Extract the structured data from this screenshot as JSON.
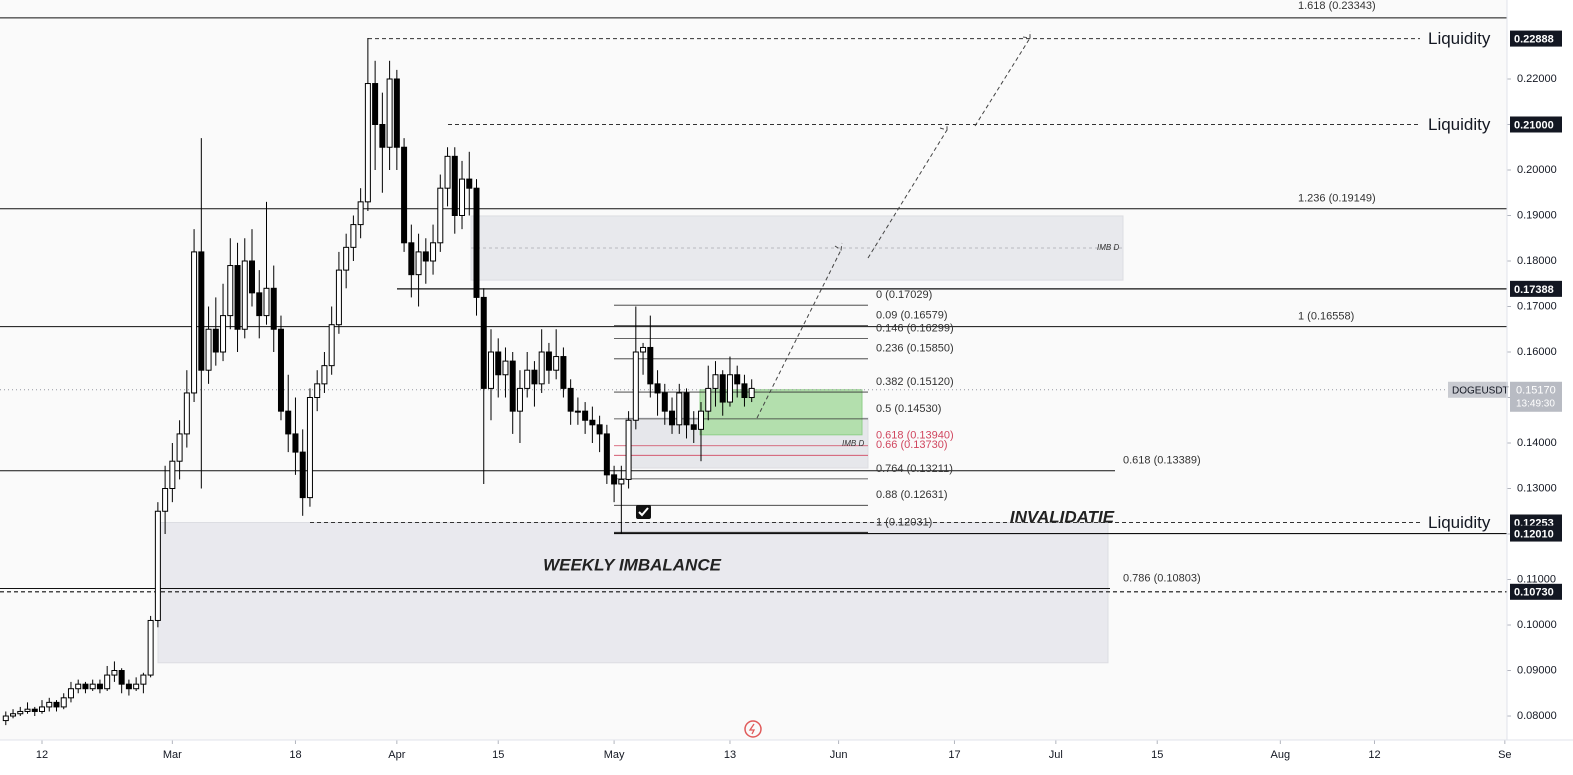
{
  "chart_data": {
    "type": "candlestick",
    "symbol": "DOGEUSDT",
    "last_price": {
      "value": 0.1517,
      "label": "0.15170"
    },
    "countdown": "13:49:30",
    "xlim": [
      -5.8,
      202.3
    ],
    "xticks": [
      {
        "value": 0,
        "label": "12"
      },
      {
        "value": 18,
        "label": "Mar"
      },
      {
        "value": 35,
        "label": "18"
      },
      {
        "value": 49,
        "label": "Apr"
      },
      {
        "value": 63,
        "label": "15"
      },
      {
        "value": 79,
        "label": "May"
      },
      {
        "value": 95,
        "label": "13"
      },
      {
        "value": 110,
        "label": "Jun"
      },
      {
        "value": 126,
        "label": "17"
      },
      {
        "value": 140,
        "label": "Jul"
      },
      {
        "value": 154,
        "label": "15"
      },
      {
        "value": 171,
        "label": "Aug"
      },
      {
        "value": 184,
        "label": "12"
      },
      {
        "value": 202,
        "label": "Se"
      }
    ],
    "ylim": [
      0.07473,
      0.23736
    ],
    "yticks": [
      {
        "value": 0.08,
        "label": "0.08000"
      },
      {
        "value": 0.09,
        "label": "0.09000"
      },
      {
        "value": 0.1,
        "label": "0.10000"
      },
      {
        "value": 0.11,
        "label": "0.11000"
      },
      {
        "value": 0.12,
        "label": "0.12000"
      },
      {
        "value": 0.13,
        "label": "0.13000"
      },
      {
        "value": 0.14,
        "label": "0.14000"
      },
      {
        "value": 0.15,
        "label": "0.15000"
      },
      {
        "value": 0.16,
        "label": "0.16000"
      },
      {
        "value": 0.17,
        "label": "0.17000"
      },
      {
        "value": 0.18,
        "label": "0.18000"
      },
      {
        "value": 0.19,
        "label": "0.19000"
      },
      {
        "value": 0.2,
        "label": "0.20000"
      },
      {
        "value": 0.21,
        "label": "0.21000"
      },
      {
        "value": 0.22,
        "label": "0.22000"
      }
    ],
    "candles": {
      "up_color": "#ffffff",
      "down_color": "#000000",
      "border_color": "#000000",
      "x": [
        -5,
        -4,
        -3,
        -2,
        -1,
        0,
        1,
        2,
        3,
        4,
        5,
        6,
        7,
        8,
        9,
        10,
        11,
        12,
        13,
        14,
        15,
        16,
        17,
        18,
        19,
        20,
        21,
        22,
        23,
        24,
        25,
        26,
        27,
        28,
        29,
        30,
        31,
        32,
        33,
        34,
        35,
        36,
        37,
        38,
        39,
        40,
        41,
        42,
        43,
        44,
        45,
        46,
        47,
        48,
        49,
        50,
        51,
        52,
        53,
        54,
        55,
        56,
        57,
        58,
        59,
        60,
        61,
        62,
        63,
        64,
        65,
        66,
        67,
        68,
        69,
        70,
        71,
        72,
        73,
        74,
        75,
        76,
        77,
        78,
        79,
        80,
        81,
        82,
        83,
        84,
        85,
        86,
        87,
        88,
        89,
        90,
        91,
        92,
        93,
        94,
        95,
        96,
        97,
        98
      ],
      "ohlc": [
        [
          0.079,
          0.081,
          0.078,
          0.08
        ],
        [
          0.08,
          0.0815,
          0.0795,
          0.0805
        ],
        [
          0.0805,
          0.082,
          0.08,
          0.081
        ],
        [
          0.081,
          0.083,
          0.0805,
          0.0815
        ],
        [
          0.0815,
          0.082,
          0.08,
          0.081
        ],
        [
          0.081,
          0.0835,
          0.0805,
          0.082
        ],
        [
          0.082,
          0.084,
          0.081,
          0.083
        ],
        [
          0.083,
          0.0835,
          0.081,
          0.082
        ],
        [
          0.082,
          0.085,
          0.0815,
          0.084
        ],
        [
          0.084,
          0.0875,
          0.083,
          0.086
        ],
        [
          0.086,
          0.088,
          0.085,
          0.087
        ],
        [
          0.087,
          0.0875,
          0.085,
          0.086
        ],
        [
          0.086,
          0.088,
          0.0855,
          0.087
        ],
        [
          0.087,
          0.088,
          0.085,
          0.086
        ],
        [
          0.086,
          0.091,
          0.0855,
          0.089
        ],
        [
          0.089,
          0.092,
          0.0875,
          0.09
        ],
        [
          0.09,
          0.0905,
          0.085,
          0.087
        ],
        [
          0.087,
          0.088,
          0.0845,
          0.086
        ],
        [
          0.086,
          0.0885,
          0.0855,
          0.087
        ],
        [
          0.087,
          0.0895,
          0.085,
          0.089
        ],
        [
          0.089,
          0.102,
          0.0885,
          0.101
        ],
        [
          0.101,
          0.127,
          0.0995,
          0.125
        ],
        [
          0.125,
          0.135,
          0.12,
          0.13
        ],
        [
          0.13,
          0.14,
          0.127,
          0.136
        ],
        [
          0.136,
          0.145,
          0.132,
          0.142
        ],
        [
          0.142,
          0.156,
          0.139,
          0.151
        ],
        [
          0.151,
          0.187,
          0.149,
          0.182
        ],
        [
          0.182,
          0.207,
          0.13,
          0.156
        ],
        [
          0.156,
          0.17,
          0.153,
          0.165
        ],
        [
          0.165,
          0.172,
          0.157,
          0.16
        ],
        [
          0.16,
          0.175,
          0.158,
          0.168
        ],
        [
          0.168,
          0.185,
          0.165,
          0.179
        ],
        [
          0.179,
          0.184,
          0.16,
          0.165
        ],
        [
          0.165,
          0.185,
          0.163,
          0.18
        ],
        [
          0.18,
          0.187,
          0.17,
          0.173
        ],
        [
          0.173,
          0.178,
          0.163,
          0.168
        ],
        [
          0.168,
          0.193,
          0.166,
          0.174
        ],
        [
          0.174,
          0.179,
          0.16,
          0.165
        ],
        [
          0.165,
          0.168,
          0.145,
          0.147
        ],
        [
          0.147,
          0.155,
          0.138,
          0.142
        ],
        [
          0.142,
          0.15,
          0.133,
          0.138
        ],
        [
          0.138,
          0.143,
          0.124,
          0.128
        ],
        [
          0.128,
          0.152,
          0.126,
          0.15
        ],
        [
          0.15,
          0.156,
          0.147,
          0.153
        ],
        [
          0.153,
          0.16,
          0.151,
          0.157
        ],
        [
          0.157,
          0.17,
          0.155,
          0.166
        ],
        [
          0.166,
          0.182,
          0.164,
          0.178
        ],
        [
          0.178,
          0.186,
          0.174,
          0.183
        ],
        [
          0.183,
          0.19,
          0.18,
          0.188
        ],
        [
          0.188,
          0.196,
          0.185,
          0.193
        ],
        [
          0.193,
          0.229,
          0.191,
          0.219
        ],
        [
          0.219,
          0.224,
          0.2,
          0.21
        ],
        [
          0.21,
          0.217,
          0.195,
          0.205
        ],
        [
          0.205,
          0.224,
          0.2,
          0.22
        ],
        [
          0.22,
          0.222,
          0.2,
          0.205
        ],
        [
          0.205,
          0.207,
          0.182,
          0.184
        ],
        [
          0.184,
          0.188,
          0.172,
          0.177
        ],
        [
          0.177,
          0.186,
          0.17,
          0.182
        ],
        [
          0.182,
          0.185,
          0.175,
          0.18
        ],
        [
          0.18,
          0.188,
          0.177,
          0.184
        ],
        [
          0.184,
          0.199,
          0.182,
          0.196
        ],
        [
          0.196,
          0.205,
          0.192,
          0.203
        ],
        [
          0.203,
          0.205,
          0.186,
          0.19
        ],
        [
          0.19,
          0.202,
          0.187,
          0.198
        ],
        [
          0.198,
          0.204,
          0.19,
          0.196
        ],
        [
          0.196,
          0.198,
          0.168,
          0.172
        ],
        [
          0.172,
          0.174,
          0.131,
          0.152
        ],
        [
          0.152,
          0.165,
          0.145,
          0.16
        ],
        [
          0.16,
          0.163,
          0.15,
          0.155
        ],
        [
          0.155,
          0.161,
          0.15,
          0.158
        ],
        [
          0.158,
          0.16,
          0.142,
          0.147
        ],
        [
          0.147,
          0.156,
          0.14,
          0.152
        ],
        [
          0.152,
          0.16,
          0.15,
          0.156
        ],
        [
          0.156,
          0.158,
          0.148,
          0.153
        ],
        [
          0.153,
          0.165,
          0.151,
          0.16
        ],
        [
          0.16,
          0.162,
          0.153,
          0.156
        ],
        [
          0.156,
          0.165,
          0.154,
          0.159
        ],
        [
          0.159,
          0.161,
          0.15,
          0.152
        ],
        [
          0.152,
          0.154,
          0.144,
          0.147
        ],
        [
          0.147,
          0.15,
          0.144,
          0.147
        ],
        [
          0.147,
          0.149,
          0.142,
          0.145
        ],
        [
          0.145,
          0.148,
          0.14,
          0.144
        ],
        [
          0.144,
          0.146,
          0.138,
          0.142
        ],
        [
          0.142,
          0.144,
          0.131,
          0.133
        ],
        [
          0.133,
          0.135,
          0.127,
          0.131
        ],
        [
          0.131,
          0.135,
          0.12,
          0.132
        ],
        [
          0.132,
          0.147,
          0.13,
          0.145
        ],
        [
          0.145,
          0.17,
          0.143,
          0.16
        ],
        [
          0.16,
          0.162,
          0.155,
          0.161
        ],
        [
          0.161,
          0.168,
          0.15,
          0.153
        ],
        [
          0.153,
          0.156,
          0.146,
          0.151
        ],
        [
          0.151,
          0.153,
          0.144,
          0.147
        ],
        [
          0.147,
          0.15,
          0.142,
          0.144
        ],
        [
          0.144,
          0.153,
          0.142,
          0.151
        ],
        [
          0.151,
          0.152,
          0.141,
          0.144
        ],
        [
          0.144,
          0.147,
          0.14,
          0.143
        ],
        [
          0.143,
          0.149,
          0.136,
          0.147
        ],
        [
          0.147,
          0.157,
          0.145,
          0.152
        ],
        [
          0.152,
          0.158,
          0.148,
          0.155
        ],
        [
          0.155,
          0.156,
          0.146,
          0.149
        ],
        [
          0.149,
          0.159,
          0.148,
          0.155
        ],
        [
          0.155,
          0.157,
          0.15,
          0.153
        ],
        [
          0.153,
          0.155,
          0.148,
          0.15
        ],
        [
          0.15,
          0.154,
          0.149,
          0.152
        ]
      ]
    },
    "zones": [
      {
        "label": "IMB D",
        "top": 0.1899,
        "bottom": 0.1758,
        "color": "#e8e9ed"
      },
      {
        "label": "IMB D",
        "top": 0.1455,
        "bottom": 0.1345,
        "color": "#e6e7eb"
      },
      {
        "top": 0.1517,
        "bottom": 0.1418,
        "color": "#b3dfad"
      },
      {
        "label": "WEEKLY IMBALANCE",
        "top": 0.12253,
        "bottom": 0.0917,
        "color": "#e9e9ee"
      }
    ],
    "fib_extensions": [
      {
        "value": 0.23343,
        "label": "1.618 (0.23343)"
      },
      {
        "value": 0.19149,
        "label": "1.236 (0.19149)"
      },
      {
        "value": 0.16558,
        "label": "1 (0.16558)"
      },
      {
        "value": 0.13389,
        "label": "0.618 (0.13389)"
      },
      {
        "value": 0.10803,
        "label": "0.786 (0.10803)"
      }
    ],
    "fib_retracement": [
      {
        "value": 0.17029,
        "label": "0 (0.17029)",
        "color": "#333333"
      },
      {
        "value": 0.16579,
        "label": "0.09 (0.16579)",
        "color": "#333333"
      },
      {
        "value": 0.16299,
        "label": "0.146 (0.16299)",
        "color": "#333333"
      },
      {
        "value": 0.1585,
        "label": "0.236 (0.15850)",
        "color": "#333333"
      },
      {
        "value": 0.1512,
        "label": "0.382 (0.15120)",
        "color": "#333333"
      },
      {
        "value": 0.1453,
        "label": "0.5 (0.14530)",
        "color": "#333333"
      },
      {
        "value": 0.1394,
        "label": "0.618 (0.13940)",
        "color": "#d0455e"
      },
      {
        "value": 0.1373,
        "label": "0.66 (0.13730)",
        "color": "#d0455e"
      },
      {
        "value": 0.13211,
        "label": "0.764 (0.13211)",
        "color": "#333333"
      },
      {
        "value": 0.12631,
        "label": "0.88 (0.12631)",
        "color": "#333333"
      },
      {
        "value": 0.12031,
        "label": "1 (0.12031)",
        "color": "#333333"
      }
    ],
    "liquidity": [
      {
        "value": 0.22888,
        "label": "0.22888",
        "text": "Liquidity"
      },
      {
        "value": 0.21,
        "label": "0.21000",
        "text": "Liquidity"
      },
      {
        "value": 0.12253,
        "label": "0.12253",
        "text": "Liquidity"
      }
    ],
    "price_levels": [
      {
        "value": 0.17388,
        "label": "0.17388"
      },
      {
        "value": 0.1201,
        "label": "0.12010"
      },
      {
        "value": 0.1073,
        "label": "0.10730"
      }
    ],
    "invalidation_label": "INVALIDATIE"
  }
}
